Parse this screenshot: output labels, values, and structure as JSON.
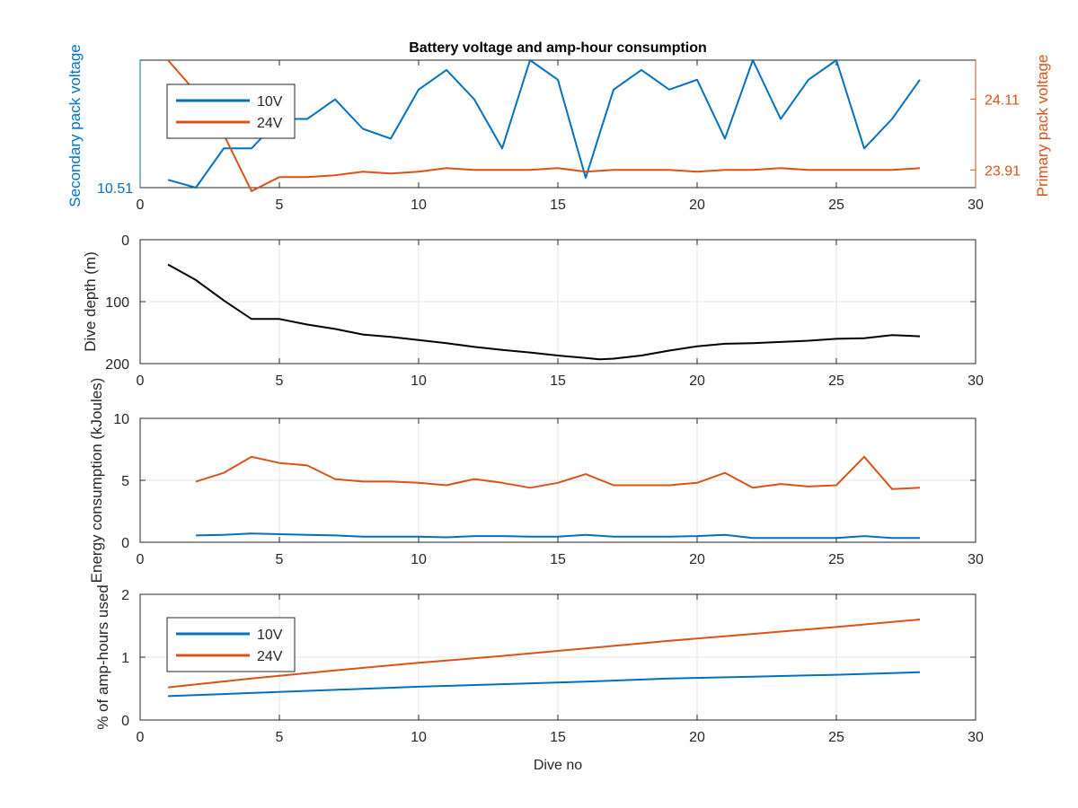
{
  "colors": {
    "blue": "#0072BD",
    "orange": "#D95319",
    "black": "#000000",
    "axis": "#262626",
    "grid": "#e6e6e6"
  },
  "chart_data": [
    {
      "type": "line",
      "title": "Battery voltage and amp-hour consumption",
      "xlabel": "",
      "xlim": [
        0,
        30
      ],
      "xticks": [
        0,
        5,
        10,
        15,
        20,
        25,
        30
      ],
      "ylabel": "Secondary pack voltage",
      "ylabel_right": "Primary pack voltage",
      "y_ticks_left": [
        "10.51"
      ],
      "y_ticks_right": [
        "24.11",
        "23.91"
      ],
      "grid": false,
      "legend": "top-left",
      "series": [
        {
          "name": "10V",
          "axis": "left",
          "x": [
            1,
            2,
            3,
            4,
            5,
            6,
            7,
            8,
            9,
            10,
            11,
            12,
            13,
            14,
            15,
            16,
            17,
            18,
            19,
            20,
            21,
            22,
            23,
            24,
            25,
            26,
            27,
            28
          ],
          "values": [
            10.514,
            10.51,
            10.53,
            10.53,
            10.545,
            10.545,
            10.555,
            10.54,
            10.535,
            10.56,
            10.57,
            10.555,
            10.53,
            10.575,
            10.565,
            10.515,
            10.56,
            10.57,
            10.56,
            10.565,
            10.535,
            10.575,
            10.545,
            10.565,
            10.575,
            10.53,
            10.545,
            10.565
          ]
        },
        {
          "name": "24V",
          "axis": "right",
          "x": [
            1,
            2,
            3,
            4,
            5,
            6,
            7,
            8,
            9,
            10,
            11,
            12,
            13,
            14,
            15,
            16,
            17,
            18,
            19,
            20,
            21,
            22,
            23,
            24,
            25,
            26,
            27,
            28
          ],
          "values": [
            24.22,
            24.13,
            24.01,
            23.85,
            23.89,
            23.89,
            23.895,
            23.905,
            23.9,
            23.905,
            23.915,
            23.91,
            23.91,
            23.91,
            23.915,
            23.905,
            23.91,
            23.91,
            23.91,
            23.905,
            23.91,
            23.91,
            23.915,
            23.91,
            23.91,
            23.91,
            23.91,
            23.915
          ]
        }
      ]
    },
    {
      "type": "line",
      "xlabel": "",
      "ylabel": "Dive depth (m)",
      "xlim": [
        0,
        30
      ],
      "xticks": [
        0,
        5,
        10,
        15,
        20,
        25,
        30
      ],
      "ylim": [
        0,
        200
      ],
      "yticks": [
        0,
        100,
        200
      ],
      "y_reversed": true,
      "grid": true,
      "series": [
        {
          "x": [
            1,
            2,
            3,
            4,
            5,
            6,
            7,
            8,
            9,
            10,
            11,
            12,
            13,
            14,
            15,
            16,
            16.5,
            17,
            18,
            19,
            20,
            21,
            22,
            23,
            24,
            25,
            26,
            27,
            28
          ],
          "values": [
            40,
            65,
            98,
            128,
            128,
            137,
            144,
            153,
            157,
            162,
            167,
            173,
            178,
            182,
            187,
            191,
            193,
            192,
            187,
            179,
            172,
            168,
            167,
            165,
            163,
            160,
            159,
            154,
            156
          ]
        }
      ]
    },
    {
      "type": "line",
      "xlabel": "",
      "ylabel": "Energy consumption (kJoules)",
      "xlim": [
        0,
        30
      ],
      "xticks": [
        0,
        5,
        10,
        15,
        20,
        25,
        30
      ],
      "ylim": [
        0,
        10
      ],
      "yticks": [
        0,
        5,
        10
      ],
      "grid": true,
      "series": [
        {
          "x": [
            2,
            3,
            4,
            5,
            6,
            7,
            8,
            9,
            10,
            11,
            12,
            13,
            14,
            15,
            16,
            17,
            18,
            19,
            20,
            21,
            22,
            23,
            24,
            25,
            26,
            27,
            28
          ],
          "values": [
            4.9,
            5.6,
            6.9,
            6.4,
            6.2,
            5.1,
            4.9,
            4.9,
            4.8,
            4.6,
            5.1,
            4.8,
            4.4,
            4.8,
            5.5,
            4.6,
            4.6,
            4.6,
            4.8,
            5.6,
            4.4,
            4.7,
            4.5,
            4.6,
            6.9,
            4.3,
            4.4
          ]
        },
        {
          "x": [
            2,
            3,
            4,
            5,
            6,
            7,
            8,
            9,
            10,
            11,
            12,
            13,
            14,
            15,
            16,
            17,
            18,
            19,
            20,
            21,
            22,
            23,
            24,
            25,
            26,
            27,
            28
          ],
          "values": [
            0.55,
            0.6,
            0.7,
            0.65,
            0.6,
            0.55,
            0.45,
            0.45,
            0.45,
            0.4,
            0.5,
            0.5,
            0.45,
            0.45,
            0.6,
            0.45,
            0.45,
            0.45,
            0.5,
            0.6,
            0.35,
            0.35,
            0.35,
            0.35,
            0.5,
            0.35,
            0.35
          ]
        }
      ]
    },
    {
      "type": "line",
      "xlabel": "Dive no",
      "ylabel": "% of amp-hours used",
      "xlim": [
        0,
        30
      ],
      "xticks": [
        0,
        5,
        10,
        15,
        20,
        25,
        30
      ],
      "ylim": [
        0,
        2
      ],
      "yticks": [
        0,
        1,
        2
      ],
      "grid": true,
      "legend": "top-left",
      "series": [
        {
          "name": "10V",
          "x": [
            1,
            4,
            7,
            10,
            13,
            16,
            19,
            22,
            25,
            28
          ],
          "values": [
            0.38,
            0.43,
            0.48,
            0.53,
            0.57,
            0.61,
            0.66,
            0.69,
            0.72,
            0.76
          ]
        },
        {
          "name": "24V",
          "x": [
            1,
            4,
            7,
            10,
            13,
            16,
            19,
            22,
            25,
            28
          ],
          "values": [
            0.52,
            0.66,
            0.79,
            0.91,
            1.02,
            1.14,
            1.26,
            1.37,
            1.48,
            1.6
          ]
        }
      ]
    }
  ]
}
